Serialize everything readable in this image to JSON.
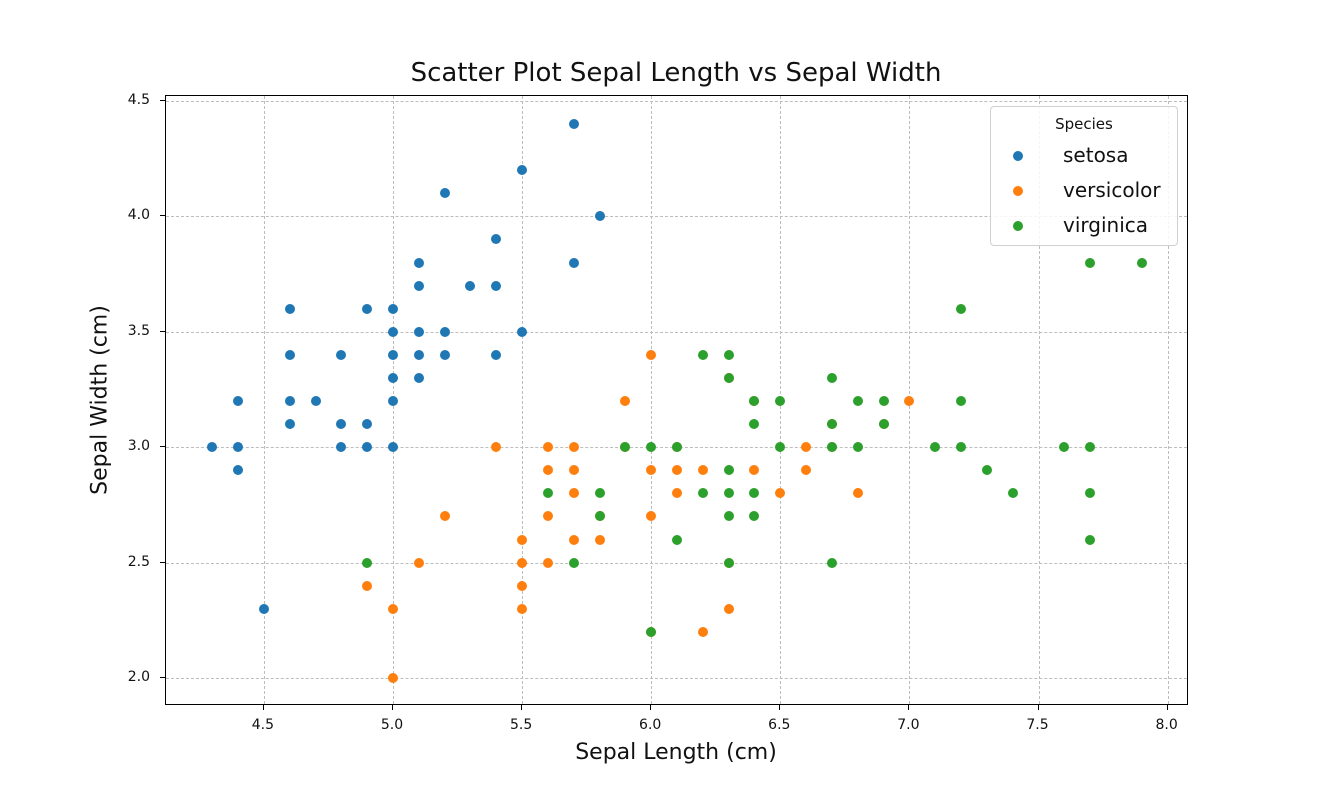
{
  "chart_data": {
    "type": "scatter",
    "title": "Scatter Plot Sepal Length vs Sepal Width",
    "xlabel": "Sepal Length (cm)",
    "ylabel": "Sepal Width (cm)",
    "xlim": [
      4.14,
      8.1
    ],
    "ylim": [
      1.88,
      4.52
    ],
    "xticks": [
      "4.5",
      "5.0",
      "5.5",
      "6.0",
      "6.5",
      "7.0",
      "7.5",
      "8.0"
    ],
    "yticks": [
      "2.0",
      "2.5",
      "3.0",
      "3.5",
      "4.0",
      "4.5"
    ],
    "grid": true,
    "legend": {
      "title": "Species",
      "position": "upper right"
    },
    "series": [
      {
        "name": "setosa",
        "color": "#1f77b4",
        "points": [
          [
            4.3,
            3.0
          ],
          [
            4.4,
            3.2
          ],
          [
            4.4,
            3.0
          ],
          [
            4.4,
            2.9
          ],
          [
            4.5,
            2.3
          ],
          [
            4.6,
            3.6
          ],
          [
            4.6,
            3.4
          ],
          [
            4.6,
            3.2
          ],
          [
            4.6,
            3.1
          ],
          [
            4.7,
            3.2
          ],
          [
            4.8,
            3.4
          ],
          [
            4.8,
            3.1
          ],
          [
            4.8,
            3.0
          ],
          [
            4.9,
            3.6
          ],
          [
            4.9,
            3.1
          ],
          [
            4.9,
            3.0
          ],
          [
            5.0,
            3.6
          ],
          [
            5.0,
            3.5
          ],
          [
            5.0,
            3.4
          ],
          [
            5.0,
            3.3
          ],
          [
            5.0,
            3.2
          ],
          [
            5.0,
            3.0
          ],
          [
            5.1,
            3.8
          ],
          [
            5.1,
            3.7
          ],
          [
            5.1,
            3.5
          ],
          [
            5.1,
            3.4
          ],
          [
            5.1,
            3.3
          ],
          [
            5.2,
            4.1
          ],
          [
            5.2,
            3.5
          ],
          [
            5.2,
            3.4
          ],
          [
            5.3,
            3.7
          ],
          [
            5.4,
            3.9
          ],
          [
            5.4,
            3.7
          ],
          [
            5.4,
            3.4
          ],
          [
            5.5,
            4.2
          ],
          [
            5.5,
            3.5
          ],
          [
            5.7,
            4.4
          ],
          [
            5.7,
            3.8
          ],
          [
            5.8,
            4.0
          ]
        ]
      },
      {
        "name": "versicolor",
        "color": "#ff7f0e",
        "points": [
          [
            4.9,
            2.4
          ],
          [
            5.0,
            2.3
          ],
          [
            5.0,
            2.0
          ],
          [
            5.1,
            2.5
          ],
          [
            5.2,
            2.7
          ],
          [
            5.4,
            3.0
          ],
          [
            5.5,
            2.6
          ],
          [
            5.5,
            2.5
          ],
          [
            5.5,
            2.4
          ],
          [
            5.5,
            2.3
          ],
          [
            5.6,
            3.0
          ],
          [
            5.6,
            2.9
          ],
          [
            5.6,
            2.7
          ],
          [
            5.6,
            2.5
          ],
          [
            5.7,
            3.0
          ],
          [
            5.7,
            2.9
          ],
          [
            5.7,
            2.8
          ],
          [
            5.7,
            2.6
          ],
          [
            5.8,
            2.7
          ],
          [
            5.8,
            2.6
          ],
          [
            5.9,
            3.2
          ],
          [
            5.9,
            3.0
          ],
          [
            6.0,
            3.4
          ],
          [
            6.0,
            2.9
          ],
          [
            6.0,
            2.7
          ],
          [
            6.0,
            2.2
          ],
          [
            6.1,
            3.0
          ],
          [
            6.1,
            2.9
          ],
          [
            6.1,
            2.8
          ],
          [
            6.2,
            2.9
          ],
          [
            6.2,
            2.2
          ],
          [
            6.3,
            3.3
          ],
          [
            6.3,
            2.5
          ],
          [
            6.3,
            2.3
          ],
          [
            6.4,
            3.2
          ],
          [
            6.4,
            2.9
          ],
          [
            6.5,
            2.8
          ],
          [
            6.6,
            3.0
          ],
          [
            6.6,
            2.9
          ],
          [
            6.7,
            3.1
          ],
          [
            6.7,
            3.0
          ],
          [
            6.8,
            2.8
          ],
          [
            6.9,
            3.1
          ],
          [
            7.0,
            3.2
          ]
        ]
      },
      {
        "name": "virginica",
        "color": "#2ca02c",
        "points": [
          [
            4.9,
            2.5
          ],
          [
            5.6,
            2.8
          ],
          [
            5.7,
            2.5
          ],
          [
            5.8,
            2.8
          ],
          [
            5.8,
            2.7
          ],
          [
            5.9,
            3.0
          ],
          [
            6.0,
            3.0
          ],
          [
            6.0,
            2.2
          ],
          [
            6.1,
            3.0
          ],
          [
            6.1,
            2.6
          ],
          [
            6.2,
            3.4
          ],
          [
            6.2,
            2.8
          ],
          [
            6.3,
            3.4
          ],
          [
            6.3,
            3.3
          ],
          [
            6.3,
            2.9
          ],
          [
            6.3,
            2.8
          ],
          [
            6.3,
            2.7
          ],
          [
            6.3,
            2.5
          ],
          [
            6.4,
            3.2
          ],
          [
            6.4,
            3.1
          ],
          [
            6.4,
            2.8
          ],
          [
            6.4,
            2.7
          ],
          [
            6.5,
            3.2
          ],
          [
            6.5,
            3.0
          ],
          [
            6.7,
            3.3
          ],
          [
            6.7,
            3.1
          ],
          [
            6.7,
            3.0
          ],
          [
            6.7,
            2.5
          ],
          [
            6.8,
            3.2
          ],
          [
            6.8,
            3.0
          ],
          [
            6.9,
            3.2
          ],
          [
            6.9,
            3.1
          ],
          [
            7.1,
            3.0
          ],
          [
            7.2,
            3.6
          ],
          [
            7.2,
            3.2
          ],
          [
            7.2,
            3.0
          ],
          [
            7.3,
            2.9
          ],
          [
            7.4,
            2.8
          ],
          [
            7.6,
            3.0
          ],
          [
            7.7,
            3.8
          ],
          [
            7.7,
            3.0
          ],
          [
            7.7,
            2.8
          ],
          [
            7.7,
            2.6
          ],
          [
            7.9,
            3.8
          ]
        ]
      }
    ]
  }
}
